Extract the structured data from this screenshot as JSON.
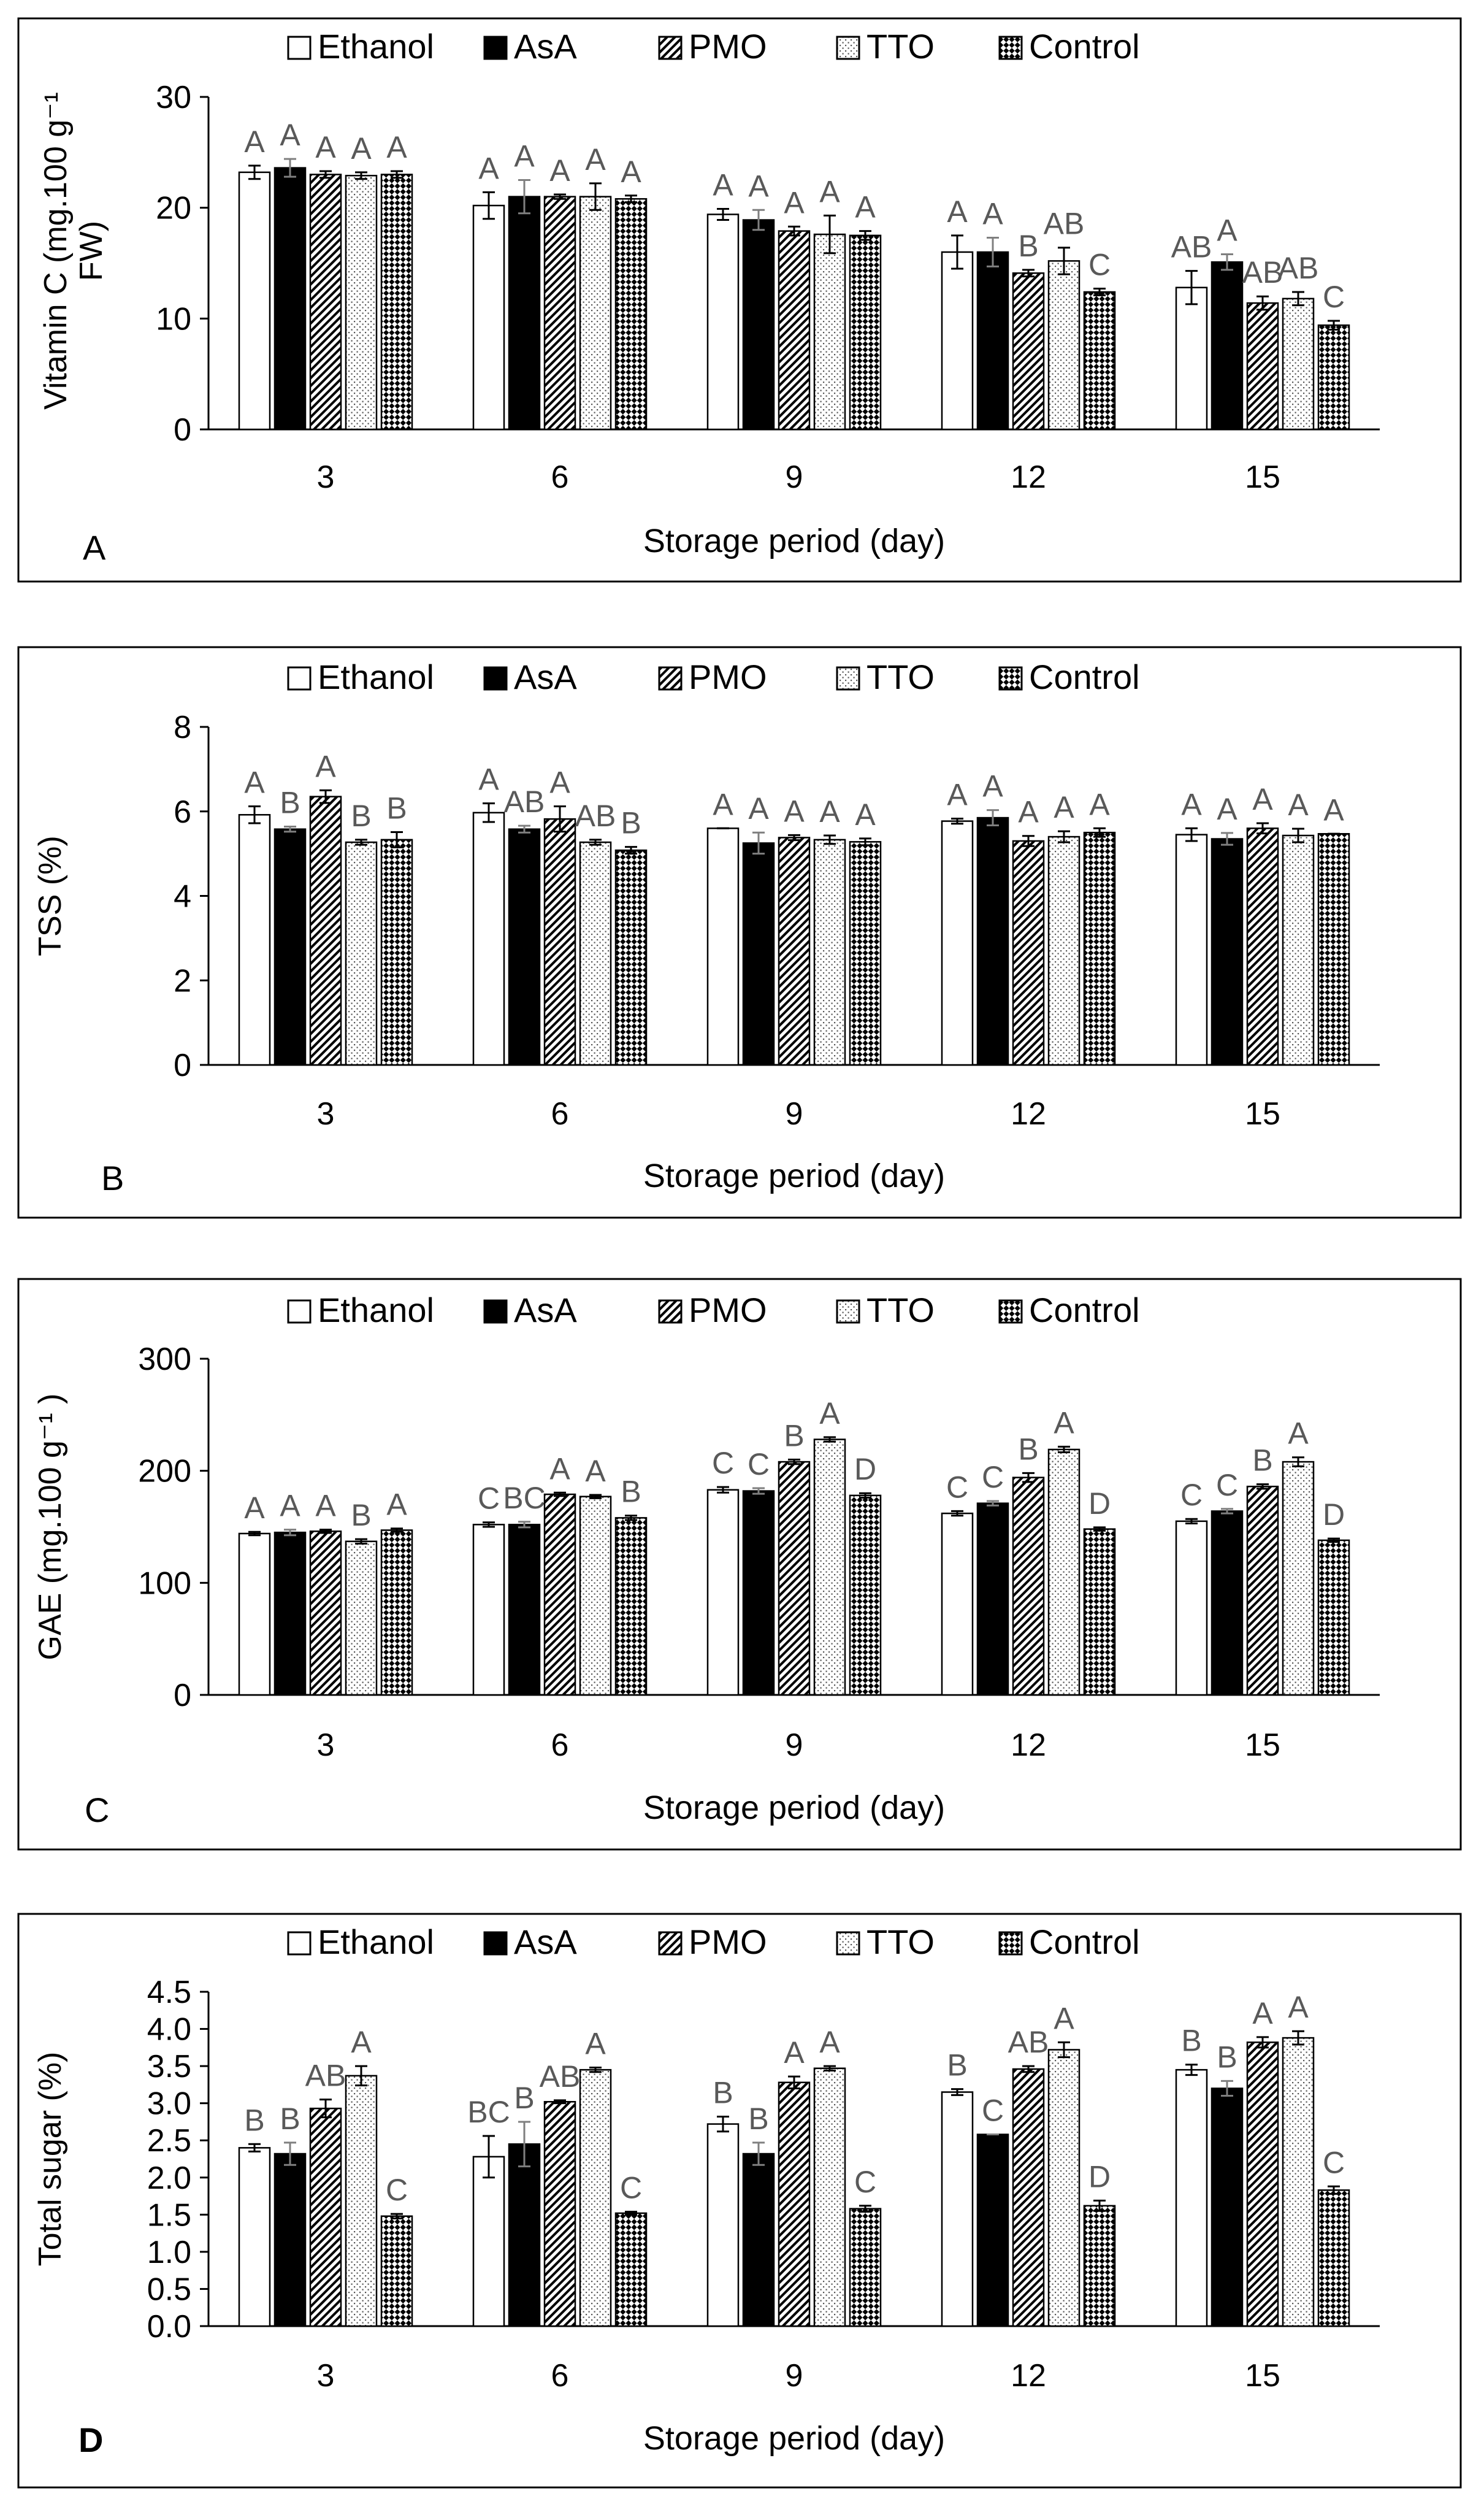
{
  "figure": {
    "legend": [
      "Ethanol",
      "AsA",
      "PMO",
      "TTO",
      "Control"
    ]
  },
  "chart_data": [
    {
      "type": "bar",
      "panel_label": "A",
      "ylabel_line1": "Vitamin C (mg.100 g⁻¹",
      "ylabel_line2": "FW)",
      "xlabel": "Storage period (day)",
      "categories": [
        "3",
        "6",
        "9",
        "12",
        "15"
      ],
      "ylim": [
        0,
        30
      ],
      "yticks": [
        0,
        10,
        20,
        30
      ],
      "ytick_labels": [
        "0",
        "10",
        "20",
        "30"
      ],
      "series": [
        {
          "name": "Ethanol",
          "values": [
            23.2,
            20.2,
            19.4,
            16.0,
            12.8
          ],
          "errors": [
            0.6,
            1.2,
            0.5,
            1.5,
            1.5
          ],
          "letters": [
            "A",
            "A",
            "A",
            "A",
            "AB"
          ]
        },
        {
          "name": "AsA",
          "values": [
            23.6,
            21.0,
            18.9,
            16.0,
            15.1
          ],
          "errors": [
            0.8,
            1.5,
            0.9,
            1.3,
            0.7
          ],
          "letters": [
            "A",
            "A",
            "A",
            "A",
            "A"
          ]
        },
        {
          "name": "PMO",
          "values": [
            23.0,
            21.0,
            17.9,
            14.1,
            11.4
          ],
          "errors": [
            0.3,
            0.2,
            0.4,
            0.3,
            0.6
          ],
          "letters": [
            "A",
            "A",
            "A",
            "B",
            "AB"
          ]
        },
        {
          "name": "TTO",
          "values": [
            22.9,
            21.0,
            17.6,
            15.2,
            11.8
          ],
          "errors": [
            0.3,
            1.2,
            1.7,
            1.2,
            0.6
          ],
          "letters": [
            "A",
            "A",
            "A",
            "AB",
            "AB"
          ]
        },
        {
          "name": "Control",
          "values": [
            23.0,
            20.8,
            17.5,
            12.4,
            9.4
          ],
          "errors": [
            0.3,
            0.3,
            0.4,
            0.3,
            0.4
          ],
          "letters": [
            "A",
            "A",
            "A",
            "C",
            "C"
          ]
        }
      ]
    },
    {
      "type": "bar",
      "panel_label": "B",
      "ylabel_line1": "TSS (%)",
      "ylabel_line2": "",
      "xlabel": "Storage period (day)",
      "categories": [
        "3",
        "6",
        "9",
        "12",
        "15"
      ],
      "ylim": [
        0,
        8
      ],
      "yticks": [
        0,
        2,
        4,
        6,
        8
      ],
      "ytick_labels": [
        "0",
        "2",
        "4",
        "6",
        "8"
      ],
      "series": [
        {
          "name": "Ethanol",
          "values": [
            5.92,
            5.97,
            5.6,
            5.77,
            5.45
          ],
          "errors": [
            0.2,
            0.22,
            0.0,
            0.06,
            0.15
          ],
          "letters": [
            "A",
            "A",
            "A",
            "A",
            "A"
          ]
        },
        {
          "name": "AsA",
          "values": [
            5.58,
            5.58,
            5.25,
            5.85,
            5.35
          ],
          "errors": [
            0.06,
            0.08,
            0.25,
            0.18,
            0.14
          ],
          "letters": [
            "B",
            "AB",
            "A",
            "A",
            "A"
          ]
        },
        {
          "name": "PMO",
          "values": [
            6.35,
            5.82,
            5.38,
            5.3,
            5.6
          ],
          "errors": [
            0.15,
            0.3,
            0.06,
            0.12,
            0.12
          ],
          "letters": [
            "A",
            "A",
            "A",
            "A",
            "A"
          ]
        },
        {
          "name": "TTO",
          "values": [
            5.27,
            5.27,
            5.33,
            5.4,
            5.43
          ],
          "errors": [
            0.06,
            0.06,
            0.1,
            0.13,
            0.16
          ],
          "letters": [
            "B",
            "AB",
            "A",
            "A",
            "A"
          ]
        },
        {
          "name": "Control",
          "values": [
            5.33,
            5.08,
            5.28,
            5.5,
            5.47
          ],
          "errors": [
            0.18,
            0.08,
            0.08,
            0.1,
            0.0
          ],
          "letters": [
            "B",
            "B",
            "A",
            "A",
            "A"
          ]
        }
      ]
    },
    {
      "type": "bar",
      "panel_label": "C",
      "ylabel_line1": "GAE (mg.100 g⁻¹ )",
      "ylabel_line2": "",
      "xlabel": "Storage period (day)",
      "categories": [
        "3",
        "6",
        "9",
        "12",
        "15"
      ],
      "ylim": [
        0,
        300
      ],
      "yticks": [
        0,
        100,
        200,
        300
      ],
      "ytick_labels": [
        "0",
        "100",
        "200",
        "300"
      ],
      "series": [
        {
          "name": "Ethanol",
          "values": [
            144,
            152,
            183,
            162,
            155
          ],
          "errors": [
            1.5,
            2,
            2.5,
            2,
            2
          ],
          "letters": [
            "A",
            "C",
            "C",
            "C",
            "C"
          ]
        },
        {
          "name": "AsA",
          "values": [
            145,
            152,
            182,
            171,
            164
          ],
          "errors": [
            2.5,
            2.5,
            2.5,
            2,
            2
          ],
          "letters": [
            "A",
            "BC",
            "C",
            "C",
            "C"
          ]
        },
        {
          "name": "PMO",
          "values": [
            146,
            179,
            208,
            194,
            186
          ],
          "errors": [
            1.5,
            1.5,
            2,
            4,
            2
          ],
          "letters": [
            "A",
            "A",
            "B",
            "B",
            "B"
          ]
        },
        {
          "name": "TTO",
          "values": [
            137,
            177,
            228,
            219,
            208
          ],
          "errors": [
            2,
            1.5,
            2,
            2.5,
            4
          ],
          "letters": [
            "B",
            "A",
            "A",
            "A",
            "A"
          ]
        },
        {
          "name": "Control",
          "values": [
            147,
            158,
            178,
            148,
            138
          ],
          "errors": [
            1.5,
            2,
            2,
            1.5,
            1.5
          ],
          "letters": [
            "A",
            "B",
            "D",
            "D",
            "D"
          ]
        }
      ]
    },
    {
      "type": "bar",
      "panel_label": "D",
      "ylabel_line1": "Total sugar (%)",
      "ylabel_line2": "",
      "xlabel": "Storage period (day)",
      "categories": [
        "3",
        "6",
        "9",
        "12",
        "15"
      ],
      "ylim": [
        0,
        4.5
      ],
      "yticks": [
        0,
        0.5,
        1,
        1.5,
        2,
        2.5,
        3,
        3.5,
        4,
        4.5
      ],
      "ytick_labels": [
        "0.0",
        "0.5",
        "1.0",
        "1.5",
        "2.0",
        "2.5",
        "3.0",
        "3.5",
        "4.0",
        "4.5"
      ],
      "series": [
        {
          "name": "Ethanol",
          "values": [
            2.4,
            2.28,
            2.72,
            3.15,
            3.45
          ],
          "errors": [
            0.05,
            0.28,
            0.1,
            0.04,
            0.07
          ],
          "letters": [
            "B",
            "BC",
            "B",
            "B",
            "B"
          ]
        },
        {
          "name": "AsA",
          "values": [
            2.32,
            2.45,
            2.32,
            2.58,
            3.2
          ],
          "errors": [
            0.15,
            0.3,
            0.15,
            0.0,
            0.1
          ],
          "letters": [
            "B",
            "B",
            "B",
            "C",
            "B"
          ]
        },
        {
          "name": "PMO",
          "values": [
            2.93,
            3.02,
            3.28,
            3.46,
            3.82
          ],
          "errors": [
            0.12,
            0.02,
            0.08,
            0.04,
            0.07
          ],
          "letters": [
            "AB",
            "AB",
            "A",
            "AB",
            "A"
          ]
        },
        {
          "name": "TTO",
          "values": [
            3.37,
            3.45,
            3.47,
            3.72,
            3.88
          ],
          "errors": [
            0.13,
            0.03,
            0.03,
            0.1,
            0.09
          ],
          "letters": [
            "A",
            "A",
            "A",
            "A",
            "A"
          ]
        },
        {
          "name": "Control",
          "values": [
            1.48,
            1.52,
            1.58,
            1.62,
            1.83
          ],
          "errors": [
            0.03,
            0.02,
            0.04,
            0.07,
            0.05
          ],
          "letters": [
            "C",
            "C",
            "C",
            "D",
            "C"
          ]
        }
      ]
    }
  ]
}
